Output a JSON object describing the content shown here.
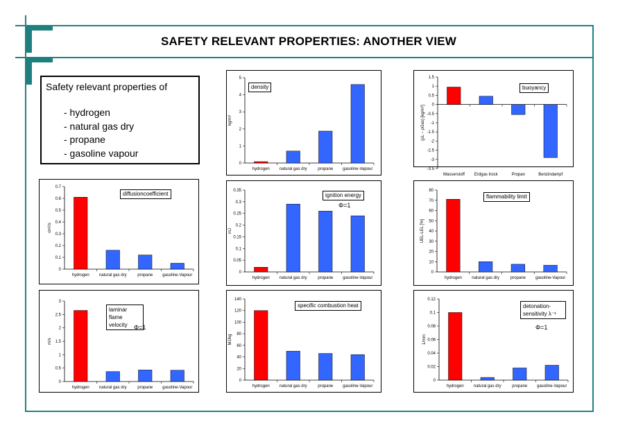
{
  "page": {
    "title": "SAFETY RELEVANT PROPERTIES: ANOTHER VIEW",
    "accent_color": "#1f7f7f"
  },
  "infobox": {
    "heading": "Safety relevant properties of",
    "items": [
      "- hydrogen",
      "- natural gas dry",
      "- propane",
      "- gasoline vapour"
    ]
  },
  "colors": {
    "hydrogen_bar": "#ff0000",
    "other_bar": "#3366ff"
  },
  "chart_data": [
    {
      "id": "density",
      "type": "bar",
      "legend": "density",
      "note": "",
      "ylabel": "kg/m³",
      "categories": [
        "hydrogen",
        "natural gas dry",
        "propane",
        "gasoline-Vapour"
      ],
      "values": [
        0.08,
        0.7,
        1.87,
        4.6
      ],
      "ylim": [
        0,
        5
      ],
      "yticks": [
        0,
        1,
        2,
        3,
        4,
        5
      ]
    },
    {
      "id": "buoyancy",
      "type": "bar",
      "legend": "buoyancy",
      "note": "",
      "ylabel": "(ρL − ρGas) [kg/m³]",
      "categories": [
        "Wasserstoff",
        "Erdgas trock",
        "Propan",
        "Benzindampf"
      ],
      "values": [
        0.95,
        0.45,
        -0.55,
        -2.9
      ],
      "ylim": [
        -3.5,
        1.5
      ],
      "yticks": [
        1.5,
        1.0,
        0.5,
        0.0,
        -0.5,
        -1.0,
        -1.5,
        -2.0,
        -2.5,
        -3.0,
        -3.5
      ]
    },
    {
      "id": "diffusion",
      "type": "bar",
      "legend": "diffusioncoefficient",
      "note": "",
      "ylabel": "cm²/s",
      "categories": [
        "hydrogen",
        "natural gas dry",
        "propane",
        "gasoline-Vapour"
      ],
      "values": [
        0.61,
        0.16,
        0.12,
        0.05
      ],
      "ylim": [
        0,
        0.7
      ],
      "yticks": [
        0,
        0.1,
        0.2,
        0.3,
        0.4,
        0.5,
        0.6,
        0.7
      ]
    },
    {
      "id": "ignition",
      "type": "bar",
      "legend": "ignition energy",
      "note": "Φ=1",
      "ylabel": "mJ",
      "categories": [
        "hydrogen",
        "natural gas dry",
        "propane",
        "gasoline-Vapour"
      ],
      "values": [
        0.02,
        0.29,
        0.26,
        0.24
      ],
      "ylim": [
        0,
        0.35
      ],
      "yticks": [
        0,
        0.05,
        0.1,
        0.15,
        0.2,
        0.25,
        0.3,
        0.35
      ]
    },
    {
      "id": "flammability",
      "type": "bar",
      "legend": "flammability limit",
      "note": "",
      "ylabel": "UEL-LEL [%]",
      "categories": [
        "hydrogen",
        "natural gas dry",
        "propane",
        "gasoline-Vapour"
      ],
      "values": [
        71,
        10,
        7.5,
        6.5
      ],
      "ylim": [
        0,
        80
      ],
      "yticks": [
        0,
        10,
        20,
        30,
        40,
        50,
        60,
        70,
        80
      ]
    },
    {
      "id": "laminar",
      "type": "bar",
      "legend": "laminar flame velocity",
      "note": "Φ=1",
      "ylabel": "m/s",
      "categories": [
        "hydrogen",
        "natural gas dry",
        "propane",
        "gasoline-Vapour"
      ],
      "values": [
        2.65,
        0.37,
        0.43,
        0.42
      ],
      "ylim": [
        0,
        3
      ],
      "yticks": [
        0,
        0.5,
        1,
        1.5,
        2,
        2.5,
        3
      ]
    },
    {
      "id": "combustion",
      "type": "bar",
      "legend": "specific combustion heat",
      "note": "",
      "ylabel": "MJ/kg",
      "categories": [
        "hydrogen",
        "natural gas dry",
        "propane",
        "gasoline-Vapour"
      ],
      "values": [
        120,
        50,
        46,
        44
      ],
      "ylim": [
        0,
        140
      ],
      "yticks": [
        0,
        20,
        40,
        60,
        80,
        100,
        120,
        140
      ]
    },
    {
      "id": "detonation",
      "type": "bar",
      "legend": "detonation-sensitivity λ⁻¹",
      "note": "Φ=1",
      "ylabel": "1/mm",
      "categories": [
        "hydrogen",
        "natural gas dry",
        "propane",
        "gasoline-Vapour"
      ],
      "values": [
        0.1,
        0.004,
        0.018,
        0.022
      ],
      "ylim": [
        0,
        0.12
      ],
      "yticks": [
        0,
        0.02,
        0.04,
        0.06,
        0.08,
        0.1,
        0.12
      ]
    }
  ]
}
